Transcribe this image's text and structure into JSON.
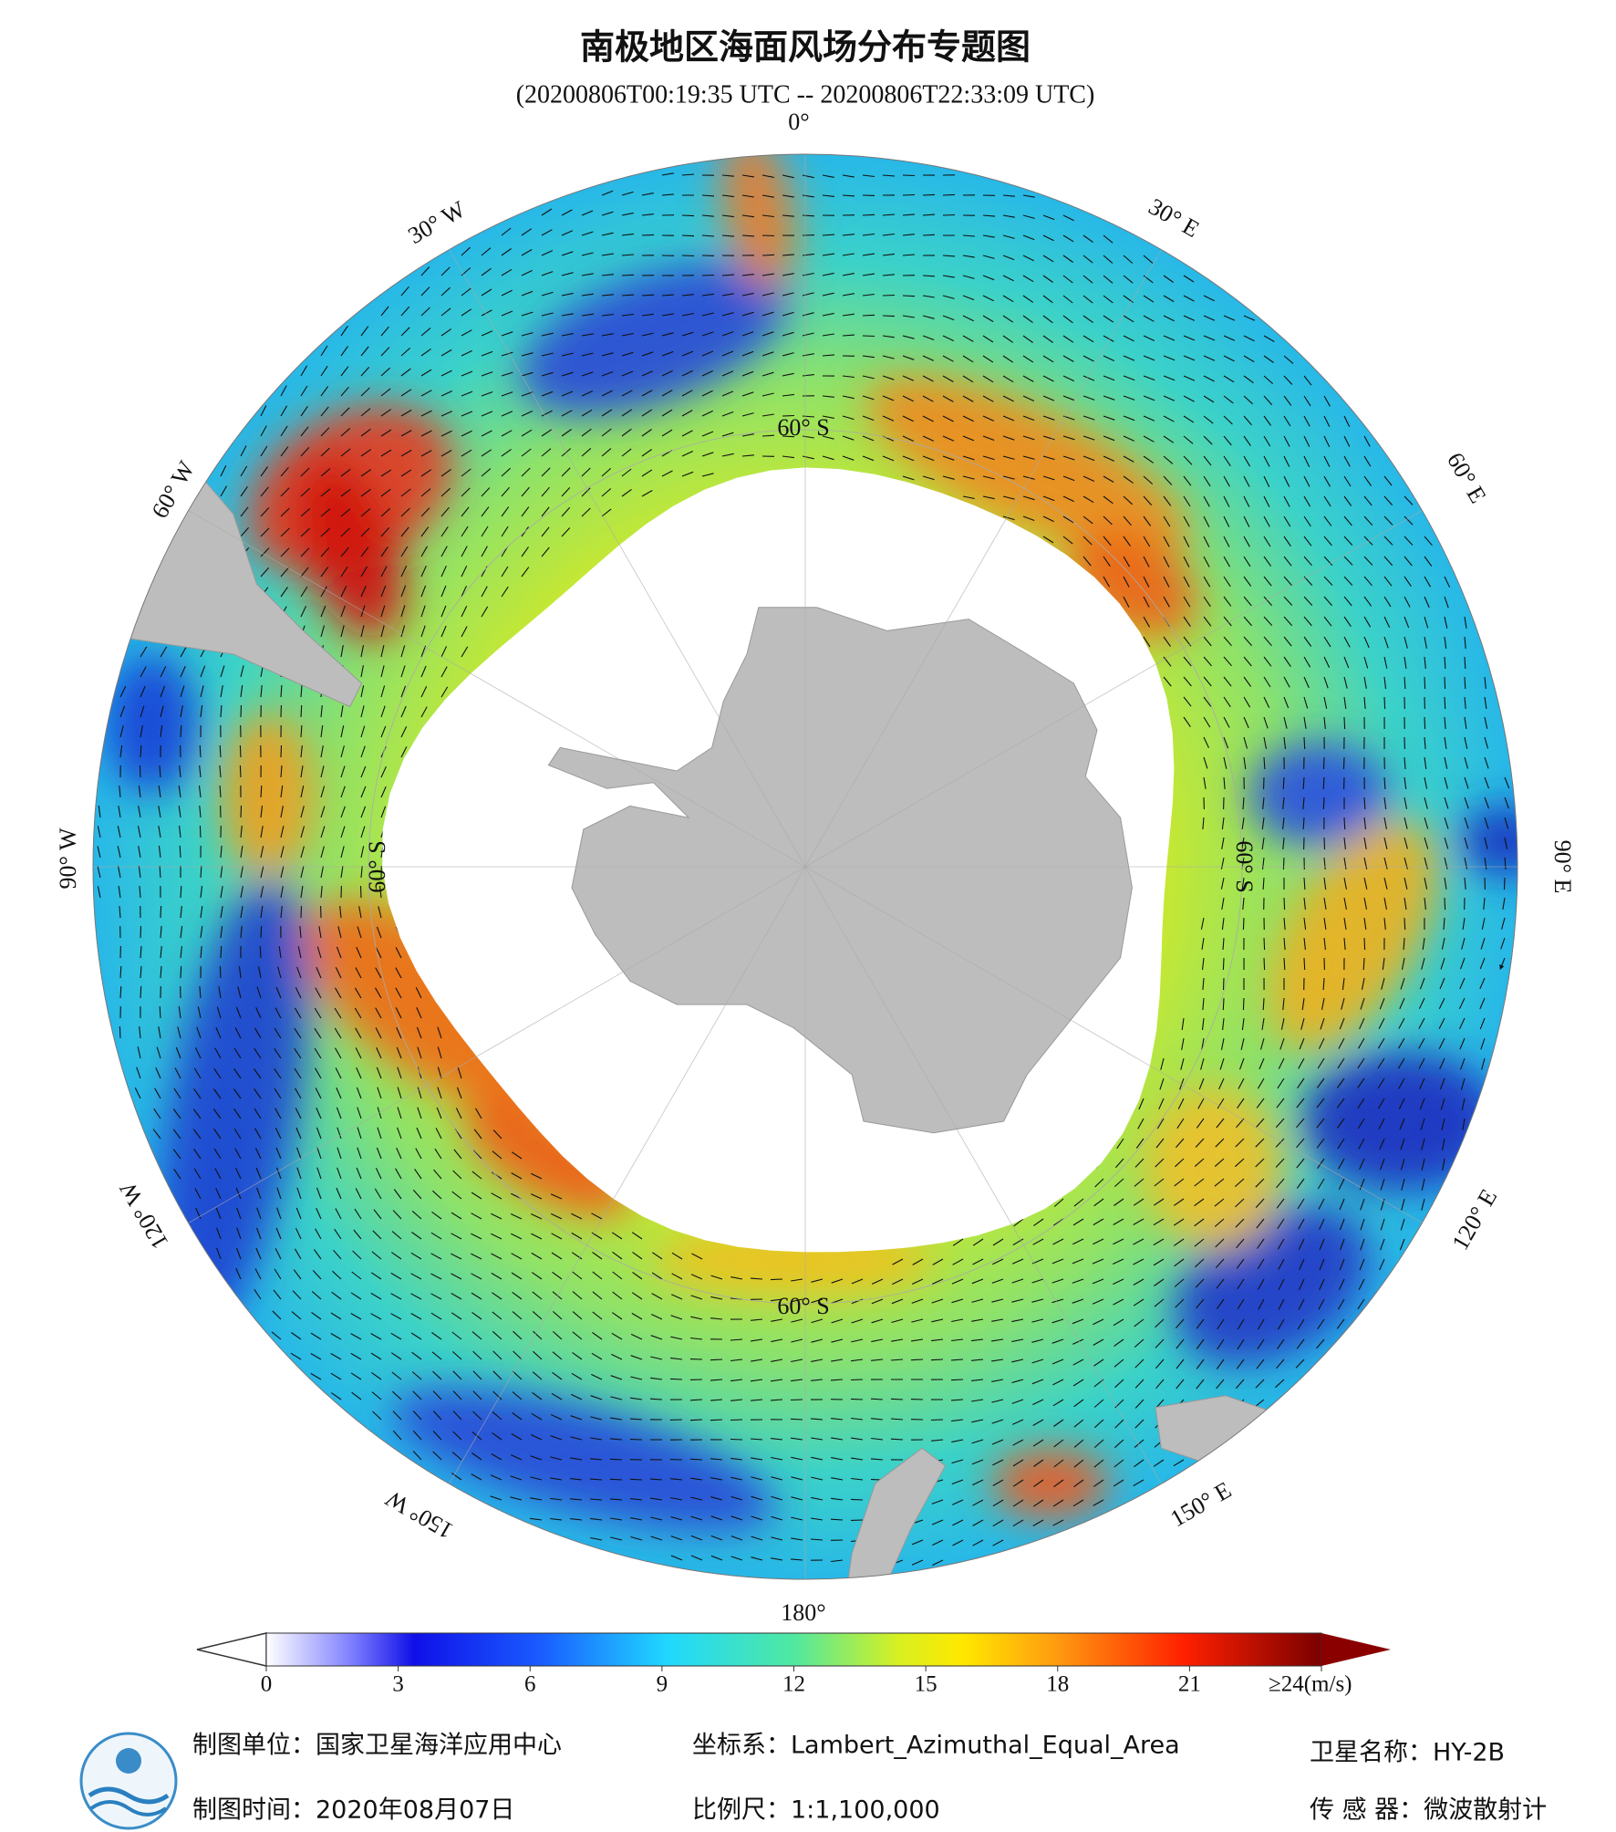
{
  "header": {
    "title": "南极地区海面风场分布专题图",
    "subtitle": "(20200806T00:19:35 UTC -- 20200806T22:33:09 UTC)"
  },
  "map": {
    "longitude_labels": [
      "0°",
      "30° E",
      "60° E",
      "90° E",
      "120° E",
      "150° E",
      "180°",
      "150° W",
      "120° W",
      "90° W",
      "60° W",
      "30° W"
    ],
    "latitude_labels": [
      "60° S",
      "60° S",
      "60° S",
      "60° S"
    ]
  },
  "colorbar": {
    "range": [
      0,
      24
    ],
    "ticks": [
      0,
      3,
      6,
      9,
      12,
      15,
      18,
      21,
      {
        "value": 24,
        "label": "≥24(m/s)"
      }
    ]
  },
  "footer": {
    "producer": "制图单位：国家卫星海洋应用中心",
    "date": "制图时间：2020年08月07日",
    "projection": "坐标系：Lambert_Azimuthal_Equal_Area",
    "scale": "比例尺：1:1,100,000",
    "satellite": "卫星名称：HY-2B",
    "sensor": "传 感 器：微波散射计"
  }
}
